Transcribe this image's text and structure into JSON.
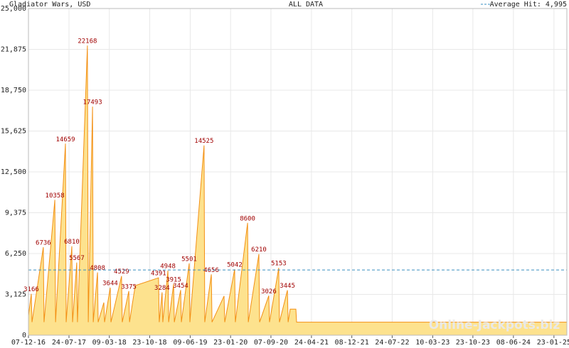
{
  "chart_data": {
    "type": "area",
    "title": "Gladiator Wars, USD",
    "subtitle": "ALL DATA",
    "average": 4995,
    "average_label": "Average Hit: 4,995",
    "average_color": "#3a8fc0",
    "watermark": "Online-Jackpots.biz",
    "color": "#f39014",
    "fill": "#fde28e",
    "label_color": "#a00000",
    "grid": true,
    "ylim": [
      0,
      25000
    ],
    "yticks": [
      0,
      {
        "value": 3125,
        "label": "3,125"
      },
      {
        "value": 6250,
        "label": "6,250"
      },
      {
        "value": 9375,
        "label": "9,375"
      },
      {
        "value": 12500,
        "label": "12,500"
      },
      {
        "value": 15625,
        "label": "15,625"
      },
      {
        "value": 18750,
        "label": "18,750"
      },
      {
        "value": 21875,
        "label": "21,875"
      },
      {
        "value": 25000,
        "label": "25,000"
      }
    ],
    "xlim": [
      "07-12-16",
      "06-04-25"
    ],
    "xticks": [
      "07-12-16",
      "24-07-17",
      "09-03-18",
      "23-10-18",
      "09-06-19",
      "23-01-20",
      "07-09-20",
      "24-04-21",
      "08-12-21",
      "24-07-22",
      "10-03-23",
      "23-10-23",
      "08-06-24",
      "23-01-25"
    ],
    "x": [
      "07-12-16",
      "23-12-16",
      "27-12-16",
      "01-03-17",
      "05-03-17",
      "05-05-17",
      "09-05-17",
      "04-07-17",
      "08-07-17",
      "09-08-17",
      "13-08-17",
      "06-09-17",
      "10-09-17",
      "05-11-17",
      "10-11-17",
      "04-12-17",
      "08-12-17",
      "01-01-18",
      "05-01-18",
      "06-02-18",
      "10-02-18",
      "14-03-18",
      "18-03-18",
      "17-05-18",
      "21-05-18",
      "27-06-18",
      "01-07-18",
      "02-08-18",
      "12-12-18",
      "16-12-18",
      "01-01-19",
      "05-01-19",
      "03-02-19",
      "07-02-19",
      "07-03-19",
      "11-03-19",
      "16-04-19",
      "20-04-19",
      "03-06-19",
      "07-06-19",
      "26-08-19",
      "30-08-19",
      "06-10-19",
      "10-10-19",
      "17-12-19",
      "21-12-19",
      "15-02-20",
      "19-02-20",
      "28-04-20",
      "02-05-20",
      "01-07-20",
      "05-07-20",
      "26-08-20",
      "30-08-20",
      "21-10-20",
      "25-10-20",
      "09-12-20",
      "13-12-20",
      "25-12-20",
      "26-01-21",
      "30-01-21",
      "06-04-25"
    ],
    "values": [
      1500,
      3166,
      1000,
      6736,
      1000,
      10358,
      1000,
      14659,
      1000,
      6810,
      1000,
      5567,
      1000,
      22168,
      1000,
      17493,
      1000,
      4808,
      1000,
      2500,
      1000,
      3644,
      1000,
      4529,
      1000,
      3375,
      1000,
      3800,
      4391,
      1000,
      3284,
      1000,
      4948,
      1000,
      3915,
      1000,
      3454,
      1000,
      5501,
      1000,
      14525,
      1000,
      4656,
      1000,
      3000,
      1000,
      5042,
      1000,
      8600,
      1000,
      6210,
      1000,
      3026,
      1000,
      5153,
      1000,
      3445,
      1000,
      2000,
      2000,
      1000,
      1000
    ],
    "value_labels": [
      null,
      "3166",
      null,
      "6736",
      null,
      "10358",
      null,
      "14659",
      null,
      "6810",
      null,
      "5567",
      null,
      "22168",
      null,
      "17493",
      null,
      "4808",
      null,
      null,
      null,
      "3644",
      null,
      "4529",
      null,
      "3375",
      null,
      null,
      "4391",
      null,
      "3284",
      null,
      "4948",
      null,
      "3915",
      null,
      "3454",
      null,
      "5501",
      null,
      "14525",
      null,
      "4656",
      null,
      null,
      null,
      "5042",
      null,
      "8600",
      null,
      "6210",
      null,
      "3026",
      null,
      "5153",
      null,
      "3445",
      null,
      null,
      null,
      null,
      null
    ]
  }
}
